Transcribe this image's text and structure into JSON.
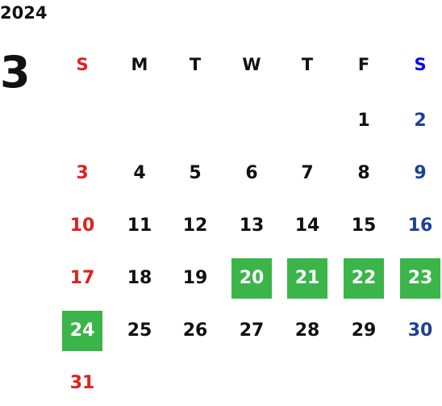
{
  "year": "2024",
  "month": "3",
  "weekdays": [
    "S",
    "M",
    "T",
    "W",
    "T",
    "F",
    "S"
  ],
  "weeks": [
    [
      null,
      null,
      null,
      null,
      null,
      1,
      2
    ],
    [
      3,
      4,
      5,
      6,
      7,
      8,
      9
    ],
    [
      10,
      11,
      12,
      13,
      14,
      15,
      16
    ],
    [
      17,
      18,
      19,
      20,
      21,
      22,
      23
    ],
    [
      24,
      25,
      26,
      27,
      28,
      29,
      30
    ],
    [
      31,
      null,
      null,
      null,
      null,
      null,
      null
    ]
  ],
  "highlighted": [
    20,
    21,
    22,
    23,
    24
  ],
  "colors": {
    "default": "#111111",
    "sunday": "#e0201c",
    "saturday": "#1f3f99",
    "saturday_header": "#0a0aee",
    "highlight": "#3bb54a",
    "highlight_text": "#ffffff"
  }
}
